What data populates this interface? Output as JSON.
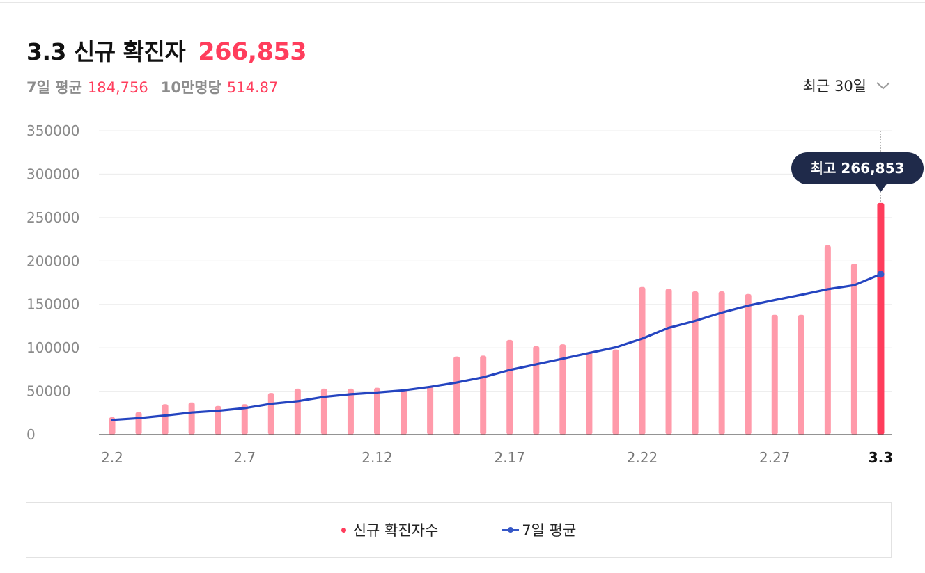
{
  "header": {
    "title": "3.3 신규 확진자",
    "value": "266,853"
  },
  "subline": {
    "avg_label": "7일 평균",
    "avg_value": "184,756",
    "per_label": "10만명당",
    "per_value": "514.87"
  },
  "range": {
    "label": "최근 30일"
  },
  "tooltip": {
    "text": "최고 266,853"
  },
  "legend": {
    "bars_label": "신규 확진자수",
    "line_label": "7일 평균"
  },
  "colors": {
    "bar": "#ff9aaa",
    "bar_highlight": "#ff3d5c",
    "line": "#2444c0",
    "tooltip_bg": "#1f2a4a"
  },
  "chart_data": {
    "type": "bar",
    "ylim": [
      0,
      350000
    ],
    "yticks": [
      0,
      50000,
      100000,
      150000,
      200000,
      250000,
      300000,
      350000
    ],
    "grid": true,
    "legend_position": "bottom",
    "x_ticks": [
      {
        "index": 0,
        "label": "2.2"
      },
      {
        "index": 5,
        "label": "2.7"
      },
      {
        "index": 10,
        "label": "2.12"
      },
      {
        "index": 15,
        "label": "2.17"
      },
      {
        "index": 20,
        "label": "2.22"
      },
      {
        "index": 25,
        "label": "2.27"
      },
      {
        "index": 29,
        "label": "3.3",
        "bold": true
      }
    ],
    "categories": [
      "2.2",
      "2.3",
      "2.4",
      "2.5",
      "2.6",
      "2.7",
      "2.8",
      "2.9",
      "2.10",
      "2.11",
      "2.12",
      "2.13",
      "2.14",
      "2.15",
      "2.16",
      "2.17",
      "2.18",
      "2.19",
      "2.20",
      "2.21",
      "2.22",
      "2.23",
      "2.24",
      "2.25",
      "2.26",
      "2.27",
      "2.28",
      "3.1",
      "3.2",
      "3.3"
    ],
    "series": [
      {
        "name": "신규 확진자수",
        "type": "bar",
        "values": [
          20000,
          26000,
          35000,
          37000,
          33000,
          35000,
          48000,
          53000,
          53000,
          53000,
          54000,
          52000,
          56000,
          90000,
          91000,
          109000,
          102000,
          104000,
          95000,
          98000,
          170000,
          168000,
          165000,
          165000,
          162000,
          138000,
          138000,
          218000,
          197000,
          266853
        ]
      },
      {
        "name": "7일 평균",
        "type": "line",
        "values": [
          17000,
          19000,
          22000,
          25500,
          27500,
          30500,
          35500,
          38500,
          43500,
          46500,
          48500,
          51000,
          55000,
          60000,
          66000,
          74500,
          81000,
          87500,
          94000,
          100500,
          110500,
          123000,
          131000,
          140500,
          148500,
          155000,
          161000,
          167500,
          172000,
          184756
        ]
      }
    ]
  }
}
